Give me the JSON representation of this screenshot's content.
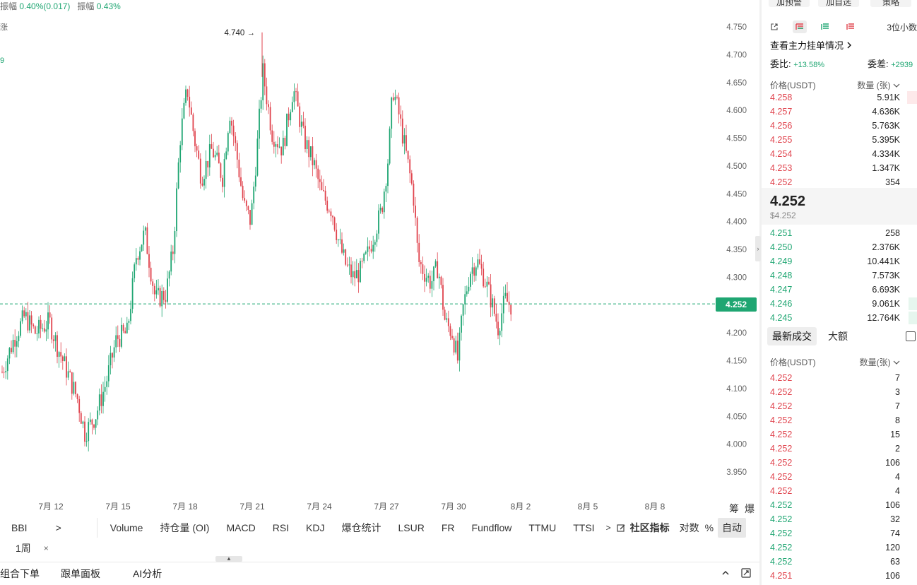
{
  "top_info": {
    "amp_label": "振幅",
    "amp_value": "0.40%(0.017)",
    "amp_label2": "振幅",
    "amp_value2": "0.43%"
  },
  "left_fragments": [
    "涨",
    "9"
  ],
  "chart": {
    "y_ticks": [
      "4.750",
      "4.700",
      "4.650",
      "4.600",
      "4.550",
      "4.500",
      "4.450",
      "4.400",
      "4.350",
      "4.300",
      "4.250",
      "4.200",
      "4.150",
      "4.100",
      "4.050",
      "4.000",
      "3.950"
    ],
    "x_ticks": [
      "7月 12",
      "7月 15",
      "7月 18",
      "7月 21",
      "7月 24",
      "7月 27",
      "7月 30",
      "8月 2",
      "8月 5",
      "8月 8"
    ],
    "current_price": "4.252",
    "high_marker": "4.740",
    "corner_labels": [
      "筹",
      "爆"
    ],
    "colors": {
      "up": "#1fa672",
      "down": "#e0434d"
    }
  },
  "indicator_bar": {
    "items": [
      "BBI",
      "Volume",
      "持仓量 (OI)",
      "MACD",
      "RSI",
      "KDJ",
      "爆仓统计",
      "LSUR",
      "FR",
      "Fundflow",
      "TTMU",
      "TTSI"
    ],
    "more_arrow": ">",
    "community": "社区指标",
    "log": "对数",
    "percent": "%",
    "auto": "自动"
  },
  "period": {
    "label": "1周",
    "close": "×"
  },
  "bottom_bar": {
    "tabs": [
      "组合下单",
      "跟单面板",
      "AI分析"
    ]
  },
  "order_panel": {
    "top_buttons": [
      "加预警",
      "加自选",
      "策略"
    ],
    "decimal": "3位小数",
    "link": "查看主力挂单情况",
    "ratio_label": "委比:",
    "ratio_value": "+13.58%",
    "diff_label": "委差:",
    "diff_value": "+2939",
    "header_price": "价格(USDT)",
    "header_qty": "数量 (张)",
    "asks": [
      {
        "price": "4.258",
        "qty": "5.91K"
      },
      {
        "price": "4.257",
        "qty": "4.636K"
      },
      {
        "price": "4.256",
        "qty": "5.763K"
      },
      {
        "price": "4.255",
        "qty": "5.395K"
      },
      {
        "price": "4.254",
        "qty": "4.334K"
      },
      {
        "price": "4.253",
        "qty": "1.347K"
      },
      {
        "price": "4.252",
        "qty": "354"
      }
    ],
    "last_price": "4.252",
    "last_usd": "$4.252",
    "bids": [
      {
        "price": "4.251",
        "qty": "258"
      },
      {
        "price": "4.250",
        "qty": "2.376K"
      },
      {
        "price": "4.249",
        "qty": "10.441K"
      },
      {
        "price": "4.248",
        "qty": "7.573K"
      },
      {
        "price": "4.247",
        "qty": "6.693K"
      },
      {
        "price": "4.246",
        "qty": "9.061K"
      },
      {
        "price": "4.245",
        "qty": "12.764K"
      }
    ],
    "trade_tab_active": "最新成交",
    "trade_tab_other": "大额",
    "trades_header_price": "价格(USDT)",
    "trades_header_qty": "数量(张)",
    "trades": [
      {
        "price": "4.252",
        "qty": "7",
        "side": "sell"
      },
      {
        "price": "4.252",
        "qty": "3",
        "side": "sell"
      },
      {
        "price": "4.252",
        "qty": "7",
        "side": "sell"
      },
      {
        "price": "4.252",
        "qty": "8",
        "side": "sell"
      },
      {
        "price": "4.252",
        "qty": "15",
        "side": "sell"
      },
      {
        "price": "4.252",
        "qty": "2",
        "side": "sell"
      },
      {
        "price": "4.252",
        "qty": "106",
        "side": "sell"
      },
      {
        "price": "4.252",
        "qty": "4",
        "side": "sell"
      },
      {
        "price": "4.252",
        "qty": "4",
        "side": "sell"
      },
      {
        "price": "4.252",
        "qty": "106",
        "side": "buy"
      },
      {
        "price": "4.252",
        "qty": "32",
        "side": "buy"
      },
      {
        "price": "4.252",
        "qty": "74",
        "side": "buy"
      },
      {
        "price": "4.252",
        "qty": "120",
        "side": "buy"
      },
      {
        "price": "4.252",
        "qty": "63",
        "side": "buy"
      },
      {
        "price": "4.251",
        "qty": "106",
        "side": "sell"
      }
    ]
  }
}
